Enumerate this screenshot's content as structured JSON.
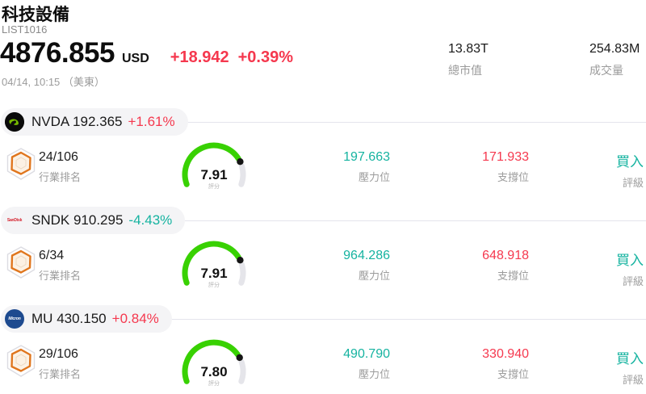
{
  "header": {
    "title": "科技設備",
    "code": "LIST1016",
    "price": "4876.855",
    "currency": "USD",
    "change": "+18.942",
    "change_pct": "+0.39%",
    "change_direction": "up",
    "datetime": "04/14, 10:15 （美東）",
    "stats": [
      {
        "value": "13.83T",
        "label": "總市值"
      },
      {
        "value": "254.83M",
        "label": "成交量"
      }
    ]
  },
  "colors": {
    "up": "#f5384e",
    "down": "#15b3a0",
    "gauge_fill": "#38d102",
    "gauge_track": "#e5e5ea",
    "gauge_dot": "#151515",
    "nvidia_green": "#76b900",
    "sandisk_red": "#d5222e",
    "micron_blue": "#1d4a8f"
  },
  "stocks": [
    {
      "ticker": "NVDA",
      "price": "192.365",
      "change": "+1.61%",
      "direction": "up",
      "logo": {
        "icon": "nvidia-logo",
        "bg": "#0a0a0a",
        "text": "",
        "text_color": "#76b900"
      },
      "rank": "24/106",
      "rank_label": "行業排名",
      "score": "7.91",
      "score_max": 10,
      "score_label": "評分",
      "pressure": "197.663",
      "pressure_label": "壓力位",
      "support": "171.933",
      "support_label": "支撐位",
      "rating": "買入",
      "rating_label": "評級"
    },
    {
      "ticker": "SNDK",
      "price": "910.295",
      "change": "-4.43%",
      "direction": "down",
      "logo": {
        "icon": "sandisk-logo",
        "bg": "transparent",
        "text": "SanDisk",
        "text_color": "#d5222e"
      },
      "rank": "6/34",
      "rank_label": "行業排名",
      "score": "7.91",
      "score_max": 10,
      "score_label": "評分",
      "pressure": "964.286",
      "pressure_label": "壓力位",
      "support": "648.918",
      "support_label": "支撐位",
      "rating": "買入",
      "rating_label": "評級"
    },
    {
      "ticker": "MU",
      "price": "430.150",
      "change": "+0.84%",
      "direction": "up",
      "logo": {
        "icon": "micron-logo",
        "bg": "#1d4a8f",
        "text": "Micron",
        "text_color": "#ffffff"
      },
      "rank": "29/106",
      "rank_label": "行業排名",
      "score": "7.80",
      "score_max": 10,
      "score_label": "評分",
      "pressure": "490.790",
      "pressure_label": "壓力位",
      "support": "330.940",
      "support_label": "支撐位",
      "rating": "買入",
      "rating_label": "評級"
    }
  ]
}
